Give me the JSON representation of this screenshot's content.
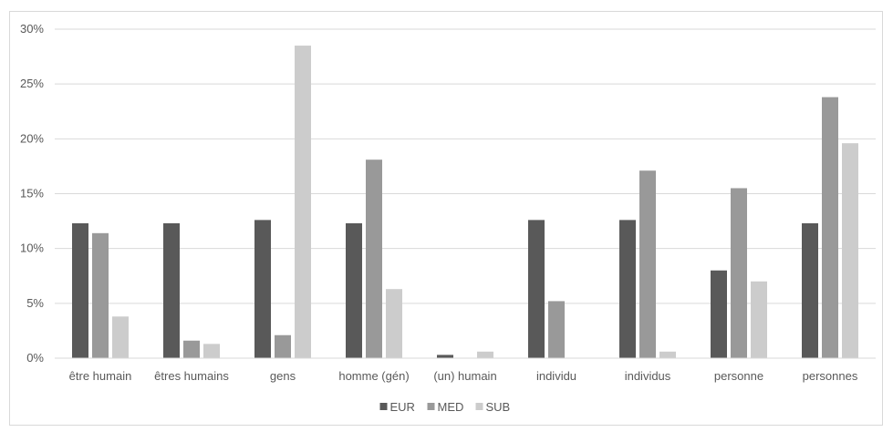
{
  "chart_data": {
    "type": "bar",
    "title": "",
    "xlabel": "",
    "ylabel": "",
    "categories": [
      "être humain",
      "êtres humains",
      "gens",
      "homme (gén)",
      "(un) humain",
      "individu",
      "individus",
      "personne",
      "personnes"
    ],
    "series": [
      {
        "name": "EUR",
        "color": "#595959",
        "values": [
          12.3,
          12.3,
          12.6,
          12.3,
          0.3,
          12.6,
          12.6,
          8.0,
          12.3
        ]
      },
      {
        "name": "MED",
        "color": "#999999",
        "values": [
          11.4,
          1.6,
          2.1,
          18.1,
          0.0,
          5.2,
          17.1,
          15.5,
          23.8
        ]
      },
      {
        "name": "SUB",
        "color": "#cccccc",
        "values": [
          3.8,
          1.3,
          28.5,
          6.3,
          0.6,
          0.0,
          0.6,
          7.0,
          19.6
        ]
      }
    ],
    "ylim": [
      0,
      30
    ],
    "yticks": [
      "0%",
      "5%",
      "10%",
      "15%",
      "20%",
      "25%",
      "30%"
    ],
    "ytick_values": [
      0,
      5,
      10,
      15,
      20,
      25,
      30
    ],
    "grid": true,
    "legend_position": "bottom"
  }
}
